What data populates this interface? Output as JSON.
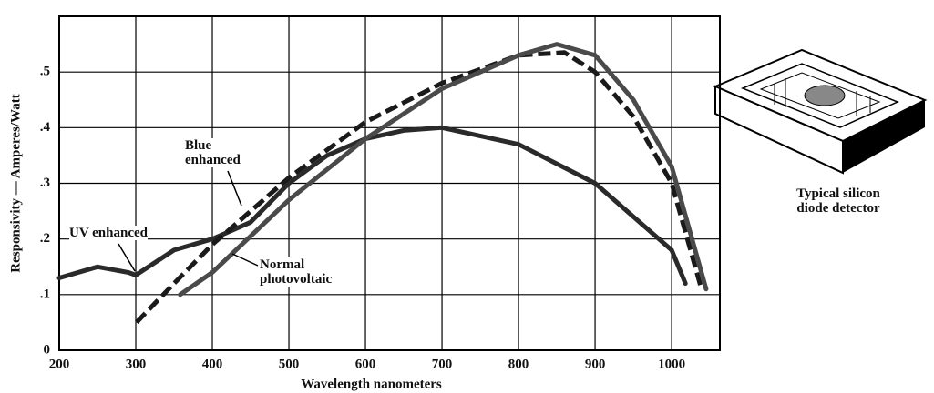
{
  "chart_data": {
    "type": "line",
    "x_label": "Wavelength nanometers",
    "y_label": "Responsivity — Amperes/Watt",
    "xlim": [
      200,
      1063
    ],
    "ylim": [
      0,
      0.6
    ],
    "xticks": [
      200,
      300,
      400,
      500,
      600,
      700,
      800,
      900,
      1000
    ],
    "yticks": [
      0,
      {
        "value": 0.1,
        "label": ".1"
      },
      {
        "value": 0.2,
        "label": ".2"
      },
      {
        "value": 0.3,
        "label": ".3"
      },
      {
        "value": 0.4,
        "label": ".4"
      },
      {
        "value": 0.5,
        "label": ".5"
      }
    ],
    "grid": true,
    "series": [
      {
        "name": "UV enhanced",
        "color": "#2a2a2a",
        "dashed": false,
        "x": [
          200,
          250,
          290,
          300,
          350,
          400,
          450,
          500,
          550,
          600,
          650,
          700,
          800,
          900,
          1000,
          1018
        ],
        "values": [
          0.13,
          0.15,
          0.14,
          0.135,
          0.18,
          0.2,
          0.23,
          0.3,
          0.35,
          0.38,
          0.395,
          0.4,
          0.37,
          0.3,
          0.18,
          0.12
        ]
      },
      {
        "name": "Blue enhanced",
        "color": "#1a1a1a",
        "dashed": true,
        "x": [
          301,
          350,
          400,
          450,
          500,
          600,
          700,
          800,
          860,
          900,
          950,
          1000,
          1039
        ],
        "values": [
          0.05,
          0.12,
          0.19,
          0.25,
          0.31,
          0.41,
          0.48,
          0.53,
          0.535,
          0.5,
          0.42,
          0.3,
          0.11
        ]
      },
      {
        "name": "Normal photovoltaic",
        "color": "#4a4a4a",
        "dashed": false,
        "x": [
          358,
          400,
          500,
          600,
          700,
          800,
          850,
          900,
          950,
          1000,
          1045
        ],
        "values": [
          0.1,
          0.14,
          0.27,
          0.38,
          0.47,
          0.53,
          0.55,
          0.53,
          0.45,
          0.33,
          0.11
        ]
      }
    ],
    "caption": "Typical silicon diode detector"
  }
}
